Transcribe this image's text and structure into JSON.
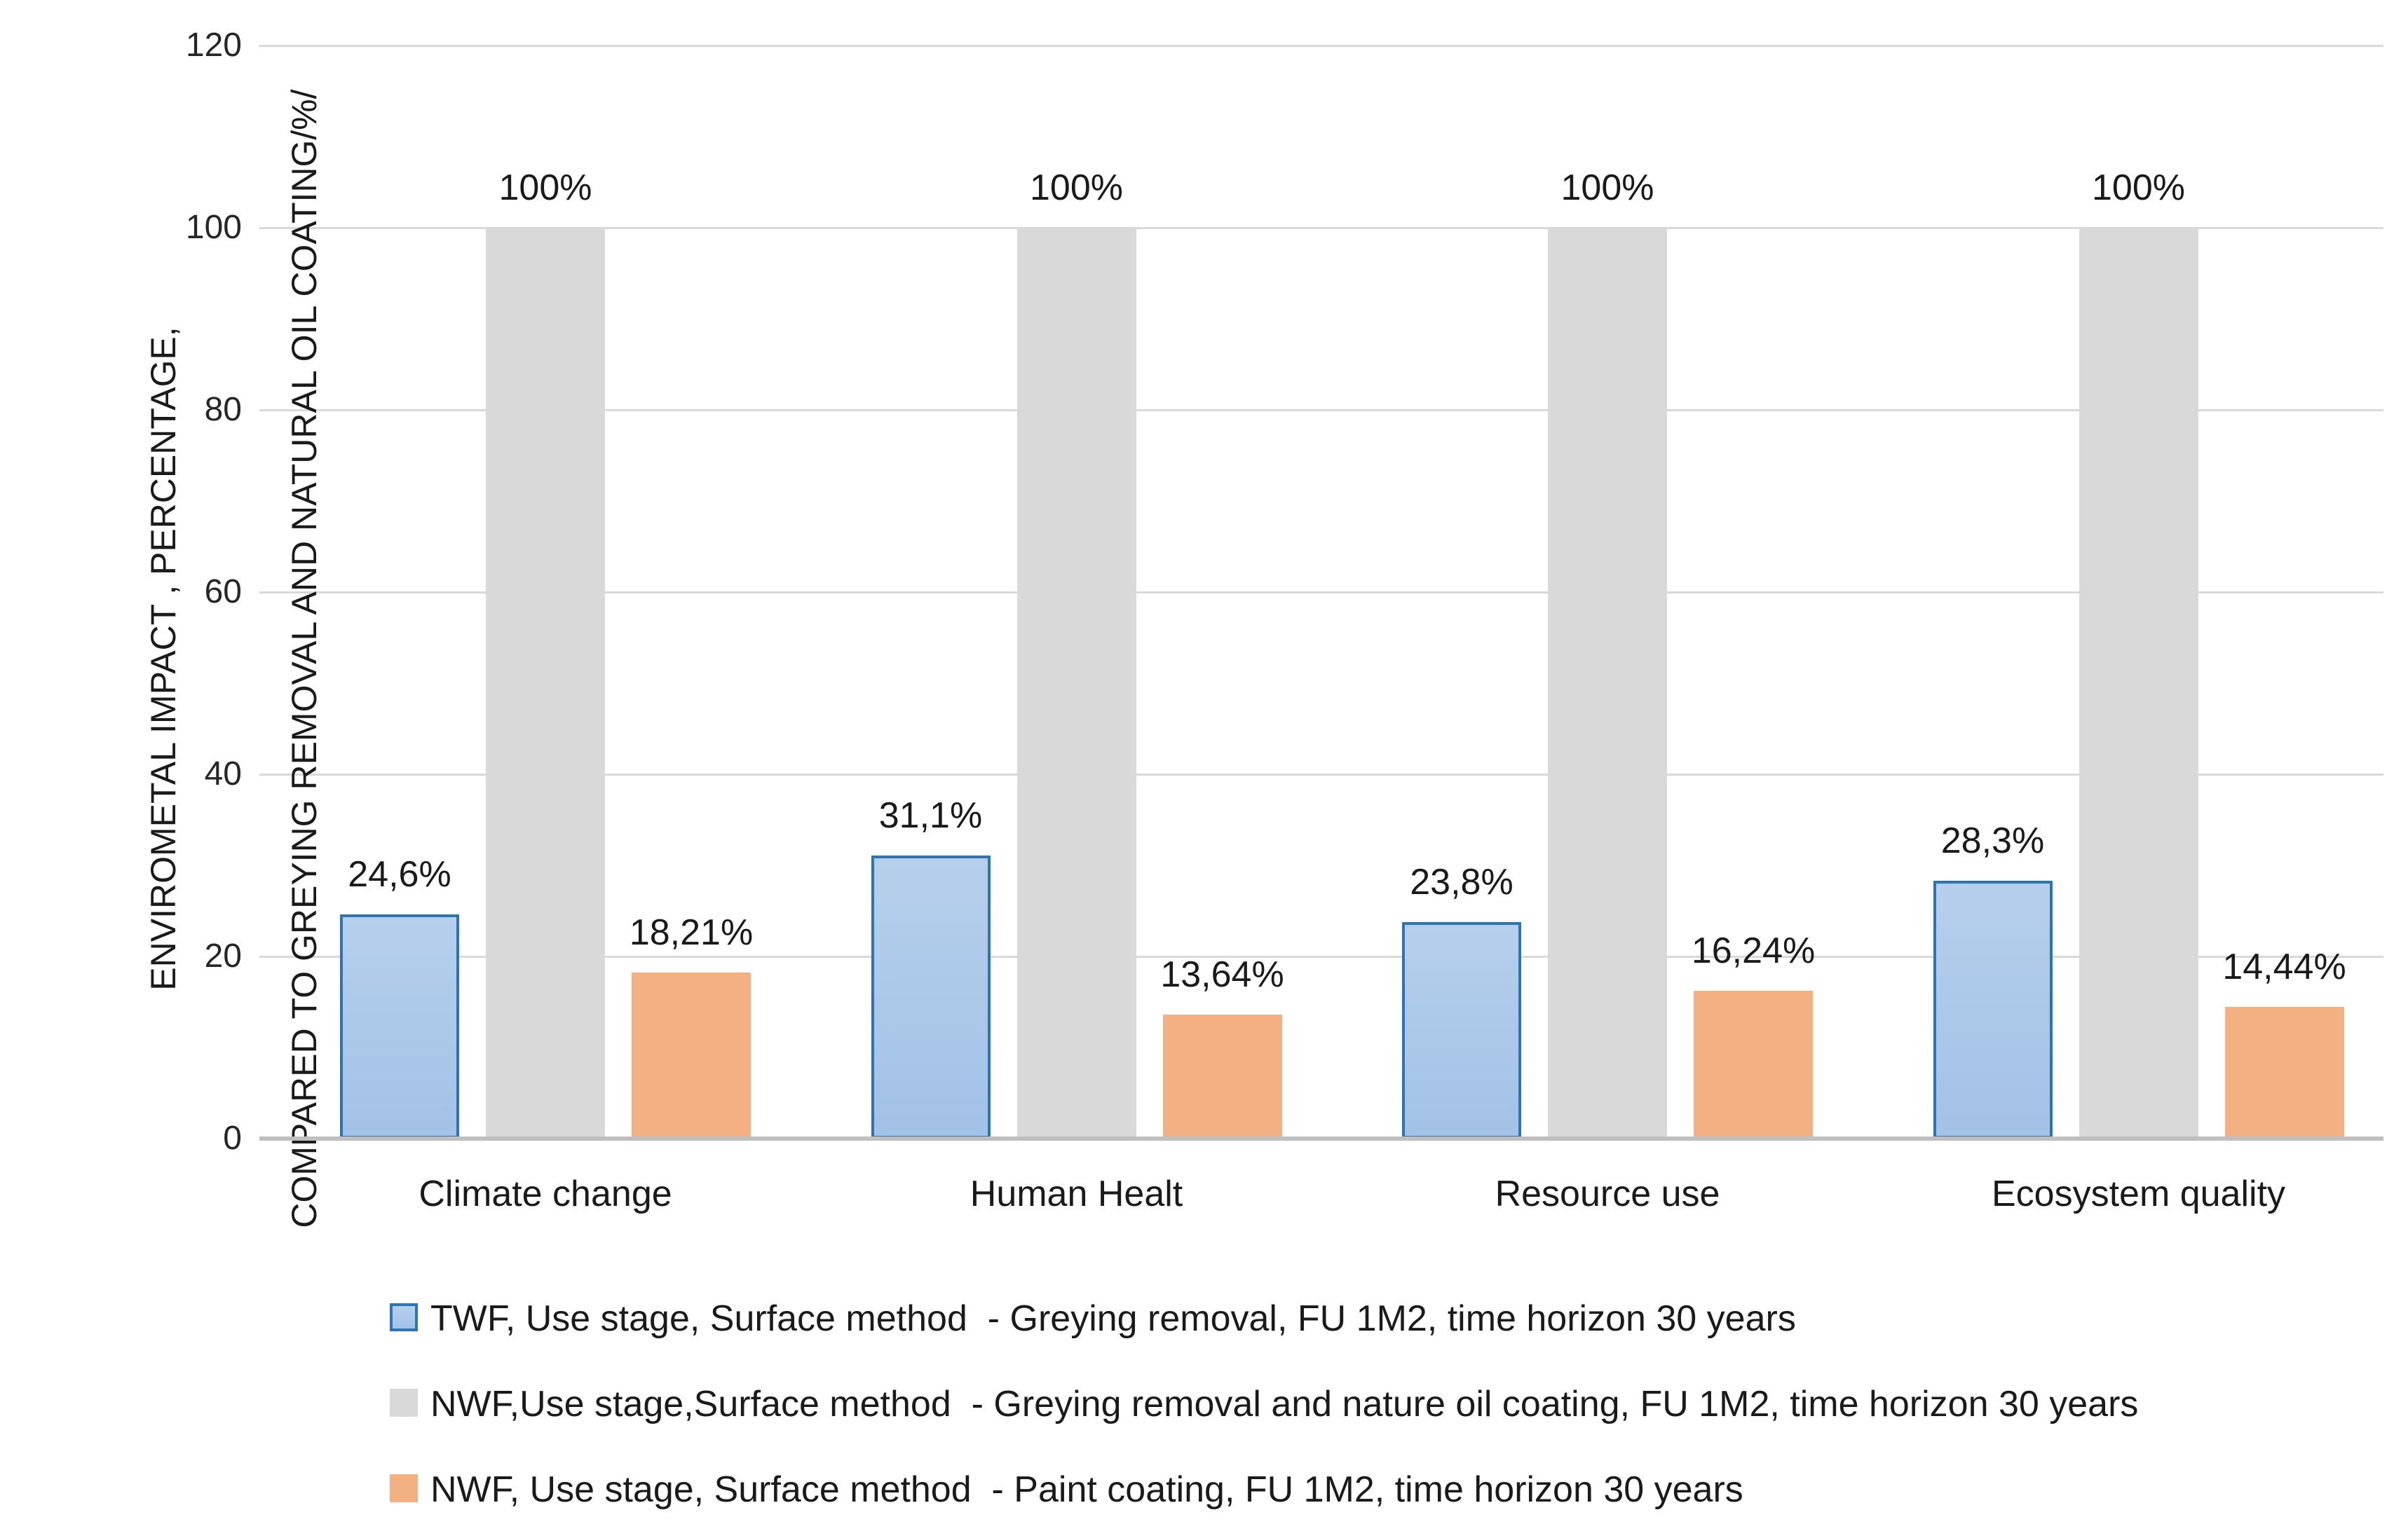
{
  "chart_data": {
    "type": "bar",
    "title": "",
    "xlabel": "",
    "ylabel_lines": [
      "ENVIROMETAL IMPACT , PERCENTAGE,",
      "COMPARED TO GREYING REMOVAL AND NATURAL OIL COATING/%/"
    ],
    "ylim": [
      0,
      120
    ],
    "yticks": [
      0,
      20,
      40,
      60,
      80,
      100,
      120
    ],
    "grid": true,
    "legend_position": "bottom-left",
    "categories": [
      "Climate change",
      "Human Healt",
      "Resource use",
      "Ecosystem quality"
    ],
    "category_keys": [
      "climate-change",
      "human-healt",
      "resource-use",
      "ecosystem-quality"
    ],
    "series": [
      {
        "key": "twf-greying-removal",
        "name": "TWF, Use stage, Surface method  - Greying removal, FU 1M2, time horizon 30 years",
        "color": "#a9c7e8",
        "gradient_top": "#b6cfec",
        "gradient_bottom": "#a2c2e6",
        "border_color": "#2e74b5",
        "values": [
          24.6,
          31.1,
          23.8,
          28.3
        ],
        "data_labels": [
          "24,6%",
          "31,1%",
          "23,8%",
          "28,3%"
        ]
      },
      {
        "key": "nwf-greying-oil",
        "name": "NWF,Use stage,Surface method  - Greying removal and nature oil coating, FU 1M2, time horizon 30 years",
        "color": "#d9d9d9",
        "values": [
          100,
          100,
          100,
          100
        ],
        "data_labels": [
          "100%",
          "100%",
          "100%",
          "100%"
        ]
      },
      {
        "key": "nwf-paint",
        "name": "NWF, Use stage, Surface method  - Paint coating, FU 1M2, time horizon 30 years",
        "color": "#f2b083",
        "values": [
          18.21,
          13.64,
          16.24,
          14.44
        ],
        "data_labels": [
          "18,21%",
          "13,64%",
          "16,24%",
          "14,44%"
        ]
      }
    ]
  },
  "colors": {
    "gridline": "#d9d9d9",
    "axis_line": "#bfbfbf",
    "text": "#1a1a1a",
    "blue_fill": "#a9c7e8",
    "blue_border": "#2e74b5",
    "grey_fill": "#d9d9d9",
    "orange_fill": "#f2b083",
    "background": "#ffffff"
  }
}
